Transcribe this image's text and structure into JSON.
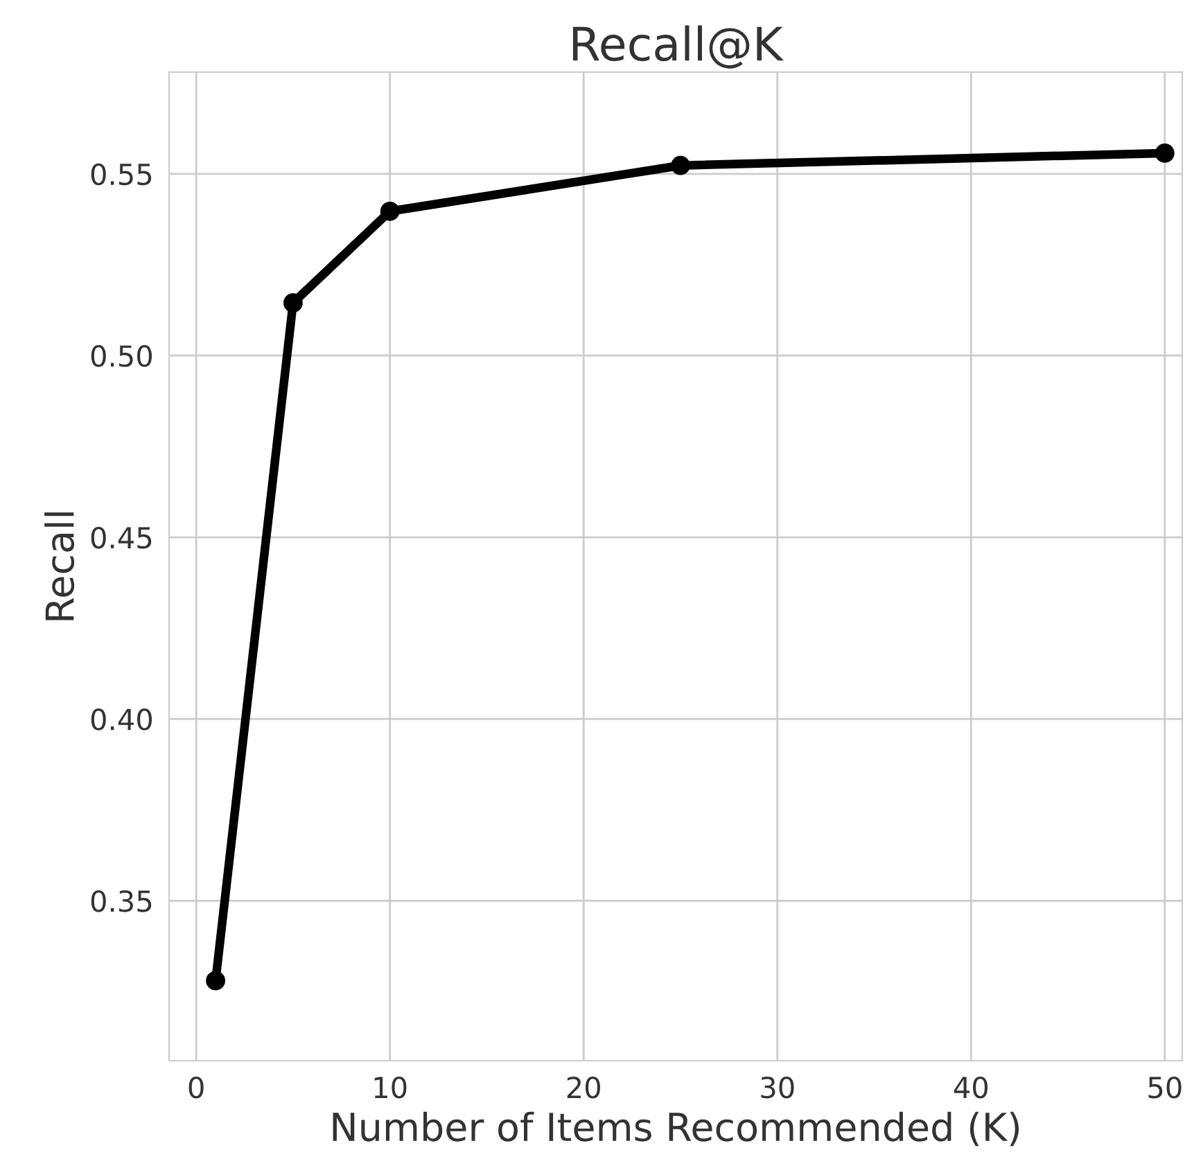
{
  "chart_data": {
    "type": "line",
    "title": "Recall@K",
    "xlabel": "Number of Items Recommended (K)",
    "ylabel": "Recall",
    "x": [
      1,
      5,
      10,
      25,
      50
    ],
    "series": [
      {
        "color": "#000000",
        "values": [
          0.328,
          0.5145,
          0.5397,
          0.5523,
          0.5557
        ]
      }
    ],
    "xlim": [
      -1.4,
      50.9
    ],
    "xticks": [
      0,
      10,
      20,
      30,
      40,
      50
    ],
    "ylim": [
      0.306,
      0.578
    ],
    "yticks": [
      0.35,
      {
        "value": 0.4,
        "label": "0.40"
      },
      0.45,
      {
        "value": 0.5,
        "label": "0.50"
      },
      0.55
    ],
    "grid": true,
    "marker": "circle",
    "line_style": "solid"
  }
}
